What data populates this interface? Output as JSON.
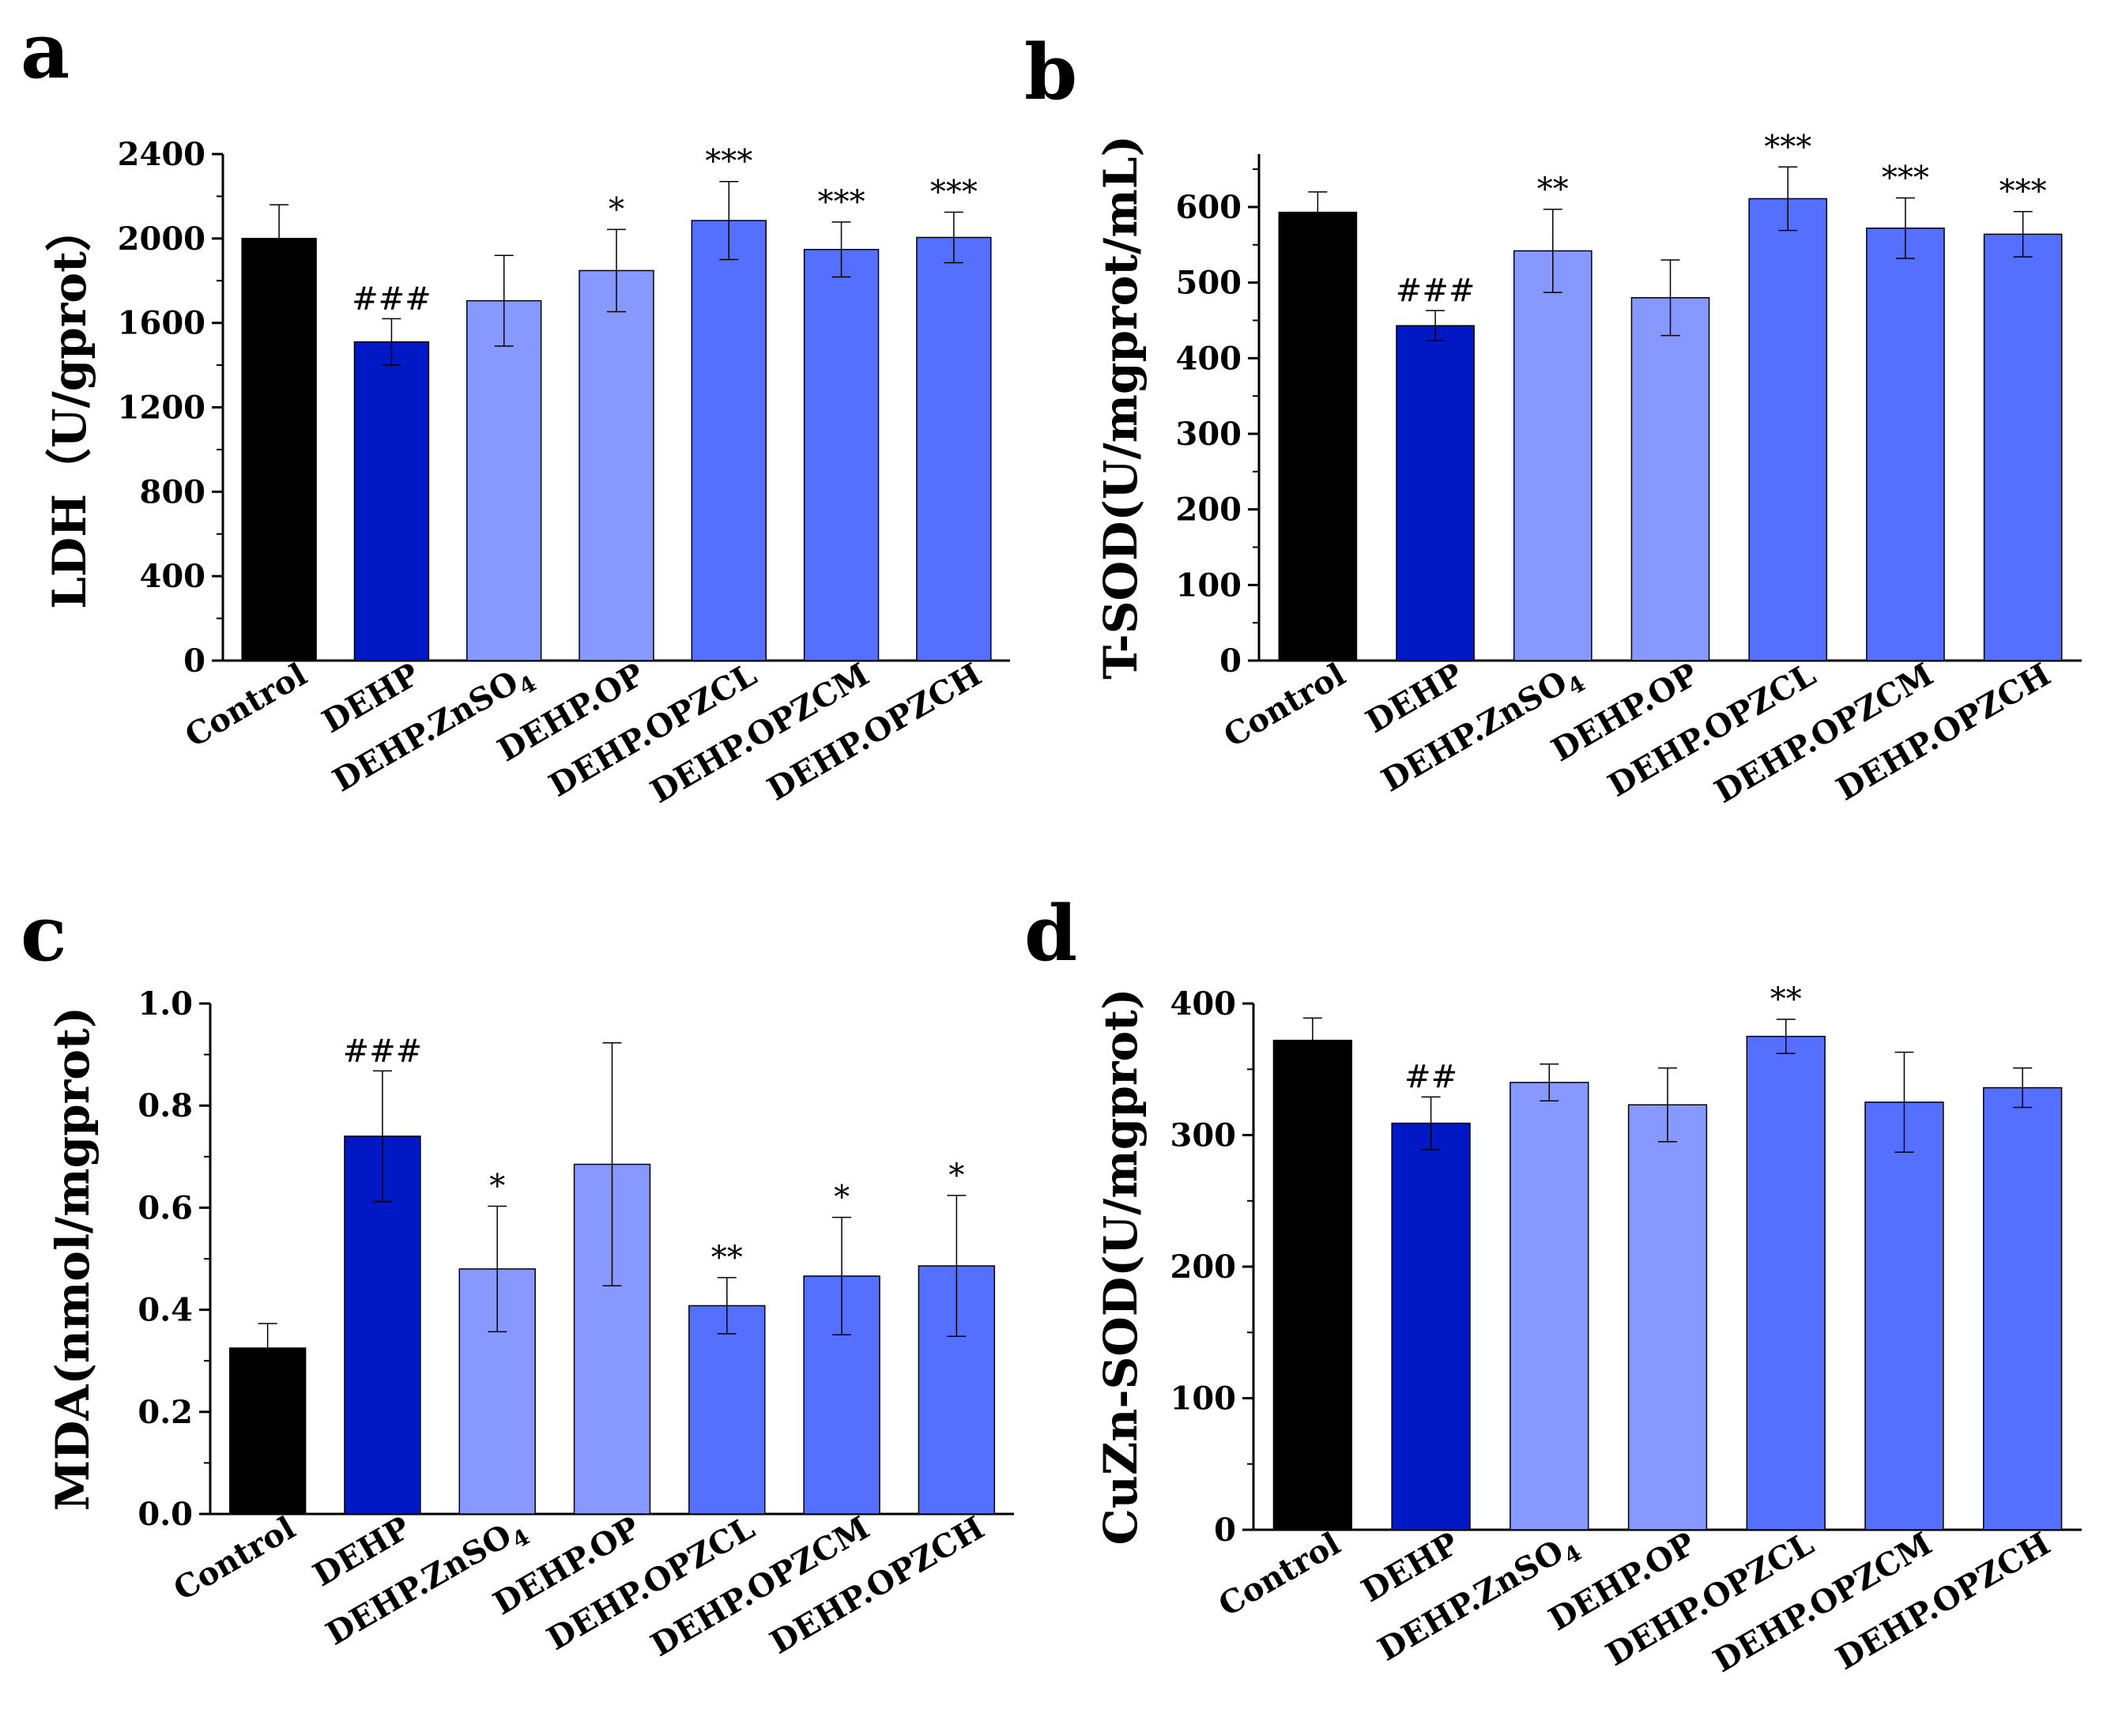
{
  "figure": {
    "categories": [
      "Control",
      "DEHP",
      "DEHP.ZnSO4",
      "DEHP.OP",
      "DEHP.OPZCL",
      "DEHP.OPZCM",
      "DEHP.OPZCH"
    ],
    "category_display": [
      {
        "base": "Control",
        "sub": "",
        "tail": ""
      },
      {
        "base": "DEHP",
        "sub": "",
        "tail": ""
      },
      {
        "base": "DEHP.ZnSO",
        "sub": "4",
        "tail": ""
      },
      {
        "base": "DEHP.OP",
        "sub": "",
        "tail": ""
      },
      {
        "base": "DEHP.OPZCL",
        "sub": "",
        "tail": ""
      },
      {
        "base": "DEHP.OPZCM",
        "sub": "",
        "tail": ""
      },
      {
        "base": "DEHP.OPZCH",
        "sub": "",
        "tail": ""
      }
    ],
    "bar_colors": [
      "#000000",
      "#0019c4",
      "#8799ff",
      "#8799ff",
      "#5570ff",
      "#5570ff",
      "#5570ff"
    ]
  },
  "chart_data": [
    {
      "panel": "a",
      "type": "bar",
      "ylabel": "LDH（U/gprot）",
      "ylim": [
        0,
        2400
      ],
      "yticks": [
        0,
        400,
        800,
        1200,
        1600,
        2000,
        2400
      ],
      "values": [
        2000,
        1510,
        1705,
        1848,
        2085,
        1948,
        2005
      ],
      "errors": [
        160,
        110,
        215,
        195,
        185,
        130,
        120
      ],
      "significance": [
        "",
        "###",
        "",
        "*",
        "***",
        "***",
        "***"
      ]
    },
    {
      "panel": "b",
      "type": "bar",
      "ylabel": "T-SOD(U/mgprot/mL)",
      "ylim": [
        0,
        670
      ],
      "yticks": [
        0,
        100,
        200,
        300,
        400,
        500,
        600
      ],
      "values": [
        593,
        443,
        542,
        480,
        611,
        572,
        564
      ],
      "errors": [
        27,
        20,
        55,
        50,
        42,
        40,
        30
      ],
      "significance": [
        "",
        "###",
        "**",
        "",
        "***",
        "***",
        "***"
      ]
    },
    {
      "panel": "c",
      "type": "bar",
      "ylabel": "MDA(nmol/mgprot)",
      "ylim": [
        0,
        1.0
      ],
      "yticks": [
        "0.0",
        "0.2",
        "0.4",
        "0.6",
        "0.8",
        "1.0"
      ],
      "values": [
        0.325,
        0.74,
        0.48,
        0.685,
        0.408,
        0.466,
        0.486
      ],
      "errors": [
        0.048,
        0.128,
        0.123,
        0.238,
        0.055,
        0.115,
        0.138
      ],
      "significance": [
        "",
        "###",
        "*",
        "",
        "**",
        "*",
        "*"
      ]
    },
    {
      "panel": "d",
      "type": "bar",
      "ylabel": "CuZn-SOD(U/mgprot)",
      "ylim": [
        0,
        400
      ],
      "yticks": [
        0,
        100,
        200,
        300,
        400
      ],
      "values": [
        372,
        309,
        340,
        323,
        375,
        325,
        336
      ],
      "errors": [
        17,
        20,
        14,
        28,
        13,
        38,
        15
      ],
      "significance": [
        "",
        "##",
        "",
        "",
        "**",
        "",
        ""
      ]
    }
  ]
}
